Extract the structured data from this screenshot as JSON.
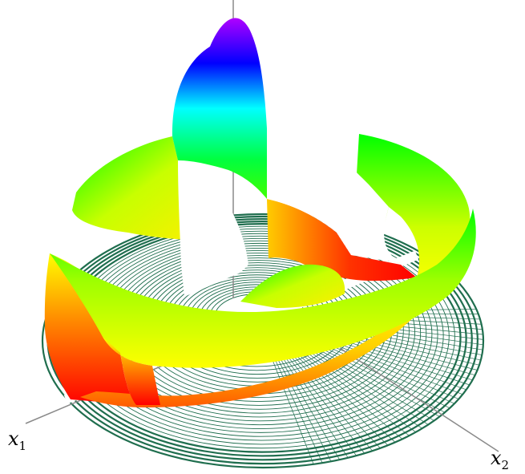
{
  "axes": {
    "x1": {
      "symbol": "x",
      "subscript": "1"
    },
    "x2": {
      "symbol": "x",
      "subscript": "2"
    }
  },
  "colors": {
    "contour": "#1f6e4e",
    "axis": "#8a8a8a",
    "surface_low": "#ff0000",
    "surface_mid_low": "#ffff00",
    "surface_mid": "#00ff00",
    "surface_mid_high": "#00ffff",
    "surface_high": "#0000ff",
    "surface_peak": "#a000ff"
  }
}
